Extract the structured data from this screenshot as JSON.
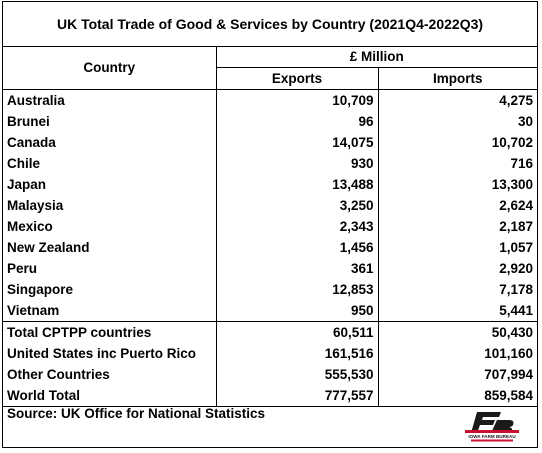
{
  "title": "UK Total Trade of Good & Services by Country  (2021Q4-2022Q3)",
  "chart_data": {
    "type": "table",
    "title": "UK Total Trade of Good & Services by Country  (2021Q4-2022Q3)",
    "header": {
      "country": "Country",
      "unit": "£ Million",
      "exports": "Exports",
      "imports": "Imports"
    },
    "countries": [
      {
        "name": "Australia",
        "exports": "10,709",
        "imports": "4,275"
      },
      {
        "name": "Brunei",
        "exports": "96",
        "imports": "30"
      },
      {
        "name": "Canada",
        "exports": "14,075",
        "imports": "10,702"
      },
      {
        "name": "Chile",
        "exports": "930",
        "imports": "716"
      },
      {
        "name": "Japan",
        "exports": "13,488",
        "imports": "13,300"
      },
      {
        "name": "Malaysia",
        "exports": "3,250",
        "imports": "2,624"
      },
      {
        "name": "Mexico",
        "exports": "2,343",
        "imports": "2,187"
      },
      {
        "name": "New Zealand",
        "exports": "1,456",
        "imports": "1,057"
      },
      {
        "name": "Peru",
        "exports": "361",
        "imports": "2,920"
      },
      {
        "name": "Singapore",
        "exports": "12,853",
        "imports": "7,178"
      },
      {
        "name": "Vietnam",
        "exports": "950",
        "imports": "5,441"
      }
    ],
    "totals": [
      {
        "name": "Total CPTPP  countries",
        "exports": "60,511",
        "imports": "50,430"
      },
      {
        "name": "United States inc Puerto Rico",
        "exports": "161,516",
        "imports": "101,160"
      },
      {
        "name": "Other Countries",
        "exports": "555,530",
        "imports": "707,994"
      },
      {
        "name": "World Total",
        "exports": "777,557",
        "imports": "859,584"
      }
    ]
  },
  "source": "Source: UK Office for National Statistics",
  "logo": {
    "icon": "iowa-farm-bureau-logo",
    "text": "IOWA FARM BUREAU",
    "color": "#c8102e"
  }
}
